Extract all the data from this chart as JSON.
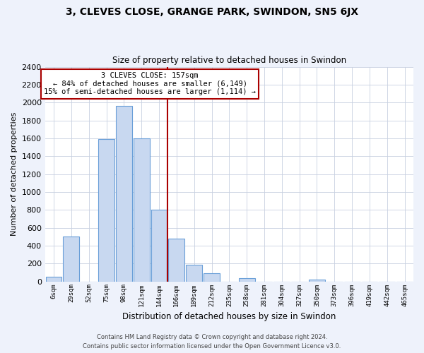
{
  "title": "3, CLEVES CLOSE, GRANGE PARK, SWINDON, SN5 6JX",
  "subtitle": "Size of property relative to detached houses in Swindon",
  "xlabel": "Distribution of detached houses by size in Swindon",
  "ylabel": "Number of detached properties",
  "bar_color": "#c8d8f0",
  "bar_edge_color": "#6a9fd8",
  "categories": [
    "6sqm",
    "29sqm",
    "52sqm",
    "75sqm",
    "98sqm",
    "121sqm",
    "144sqm",
    "166sqm",
    "189sqm",
    "212sqm",
    "235sqm",
    "258sqm",
    "281sqm",
    "304sqm",
    "327sqm",
    "350sqm",
    "373sqm",
    "396sqm",
    "419sqm",
    "442sqm",
    "465sqm"
  ],
  "values": [
    55,
    505,
    0,
    1590,
    1960,
    1600,
    800,
    480,
    190,
    95,
    0,
    35,
    0,
    0,
    0,
    20,
    0,
    0,
    0,
    0,
    0
  ],
  "ylim": [
    0,
    2400
  ],
  "yticks": [
    0,
    200,
    400,
    600,
    800,
    1000,
    1200,
    1400,
    1600,
    1800,
    2000,
    2200,
    2400
  ],
  "annotation_box_text": "3 CLEVES CLOSE: 157sqm\n← 84% of detached houses are smaller (6,149)\n15% of semi-detached houses are larger (1,114) →",
  "footnote1": "Contains HM Land Registry data © Crown copyright and database right 2024.",
  "footnote2": "Contains public sector information licensed under the Open Government Licence v3.0.",
  "background_color": "#eef2fb",
  "plot_bg_color": "#ffffff",
  "grid_color": "#c8d0e0",
  "line_color": "#aa0000"
}
